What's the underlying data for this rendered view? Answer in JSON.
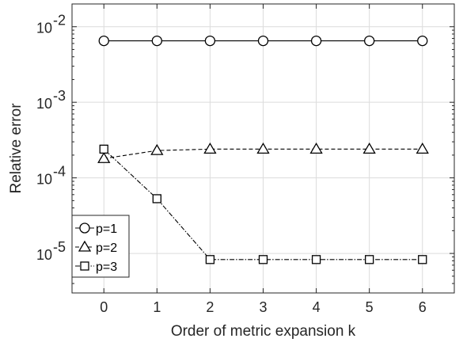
{
  "chart_data": {
    "type": "line",
    "title": "",
    "xlabel": "Order of metric expansion k",
    "ylabel": "Relative error",
    "yscale": "log",
    "xlim": [
      -0.6,
      6.6
    ],
    "ylim": [
      3e-06,
      0.02
    ],
    "x": [
      0,
      1,
      2,
      3,
      4,
      5,
      6
    ],
    "xticks": [
      "0",
      "1",
      "2",
      "3",
      "4",
      "5",
      "6"
    ],
    "yticks": [
      {
        "value": 0.01,
        "base": "10",
        "exp": "-2"
      },
      {
        "value": 0.001,
        "base": "10",
        "exp": "-3"
      },
      {
        "value": 0.0001,
        "base": "10",
        "exp": "-4"
      },
      {
        "value": 1e-05,
        "base": "10",
        "exp": "-5"
      }
    ],
    "grid": true,
    "legend_position": "bottom-left",
    "series": [
      {
        "name": "p=1",
        "marker": "circle",
        "line": "solid",
        "values": [
          0.0065,
          0.0065,
          0.0065,
          0.0065,
          0.0065,
          0.0065,
          0.0065
        ]
      },
      {
        "name": "p=2",
        "marker": "triangle",
        "line": "dashed",
        "values": [
          0.00018,
          0.00023,
          0.00024,
          0.00024,
          0.00024,
          0.00024,
          0.00024
        ]
      },
      {
        "name": "p=3",
        "marker": "square",
        "line": "dashdot",
        "values": [
          0.00024,
          5.3e-05,
          8.3e-06,
          8.3e-06,
          8.3e-06,
          8.3e-06,
          8.3e-06
        ]
      }
    ],
    "colors": {
      "line": "#000000",
      "grid": "#dcdcdc",
      "axis": "#262626"
    }
  }
}
